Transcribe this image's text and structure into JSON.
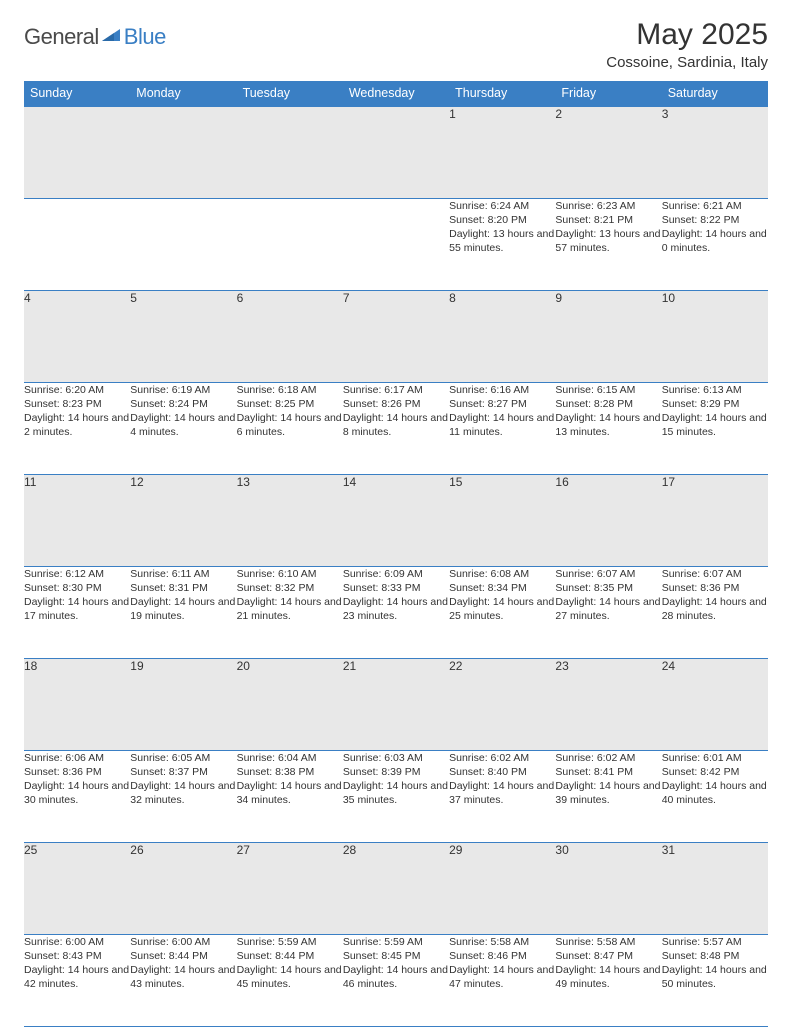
{
  "logo": {
    "text1": "General",
    "text2": "Blue"
  },
  "title": "May 2025",
  "location": "Cossoine, Sardinia, Italy",
  "colors": {
    "header_bg": "#3a7fc4",
    "header_text": "#ffffff",
    "daynum_bg": "#e8e8e8",
    "border": "#3a7fc4",
    "text": "#333333"
  },
  "weekdays": [
    "Sunday",
    "Monday",
    "Tuesday",
    "Wednesday",
    "Thursday",
    "Friday",
    "Saturday"
  ],
  "weeks": [
    [
      null,
      null,
      null,
      null,
      {
        "n": "1",
        "sr": "6:24 AM",
        "ss": "8:20 PM",
        "dl": "13 hours and 55 minutes."
      },
      {
        "n": "2",
        "sr": "6:23 AM",
        "ss": "8:21 PM",
        "dl": "13 hours and 57 minutes."
      },
      {
        "n": "3",
        "sr": "6:21 AM",
        "ss": "8:22 PM",
        "dl": "14 hours and 0 minutes."
      }
    ],
    [
      {
        "n": "4",
        "sr": "6:20 AM",
        "ss": "8:23 PM",
        "dl": "14 hours and 2 minutes."
      },
      {
        "n": "5",
        "sr": "6:19 AM",
        "ss": "8:24 PM",
        "dl": "14 hours and 4 minutes."
      },
      {
        "n": "6",
        "sr": "6:18 AM",
        "ss": "8:25 PM",
        "dl": "14 hours and 6 minutes."
      },
      {
        "n": "7",
        "sr": "6:17 AM",
        "ss": "8:26 PM",
        "dl": "14 hours and 8 minutes."
      },
      {
        "n": "8",
        "sr": "6:16 AM",
        "ss": "8:27 PM",
        "dl": "14 hours and 11 minutes."
      },
      {
        "n": "9",
        "sr": "6:15 AM",
        "ss": "8:28 PM",
        "dl": "14 hours and 13 minutes."
      },
      {
        "n": "10",
        "sr": "6:13 AM",
        "ss": "8:29 PM",
        "dl": "14 hours and 15 minutes."
      }
    ],
    [
      {
        "n": "11",
        "sr": "6:12 AM",
        "ss": "8:30 PM",
        "dl": "14 hours and 17 minutes."
      },
      {
        "n": "12",
        "sr": "6:11 AM",
        "ss": "8:31 PM",
        "dl": "14 hours and 19 minutes."
      },
      {
        "n": "13",
        "sr": "6:10 AM",
        "ss": "8:32 PM",
        "dl": "14 hours and 21 minutes."
      },
      {
        "n": "14",
        "sr": "6:09 AM",
        "ss": "8:33 PM",
        "dl": "14 hours and 23 minutes."
      },
      {
        "n": "15",
        "sr": "6:08 AM",
        "ss": "8:34 PM",
        "dl": "14 hours and 25 minutes."
      },
      {
        "n": "16",
        "sr": "6:07 AM",
        "ss": "8:35 PM",
        "dl": "14 hours and 27 minutes."
      },
      {
        "n": "17",
        "sr": "6:07 AM",
        "ss": "8:36 PM",
        "dl": "14 hours and 28 minutes."
      }
    ],
    [
      {
        "n": "18",
        "sr": "6:06 AM",
        "ss": "8:36 PM",
        "dl": "14 hours and 30 minutes."
      },
      {
        "n": "19",
        "sr": "6:05 AM",
        "ss": "8:37 PM",
        "dl": "14 hours and 32 minutes."
      },
      {
        "n": "20",
        "sr": "6:04 AM",
        "ss": "8:38 PM",
        "dl": "14 hours and 34 minutes."
      },
      {
        "n": "21",
        "sr": "6:03 AM",
        "ss": "8:39 PM",
        "dl": "14 hours and 35 minutes."
      },
      {
        "n": "22",
        "sr": "6:02 AM",
        "ss": "8:40 PM",
        "dl": "14 hours and 37 minutes."
      },
      {
        "n": "23",
        "sr": "6:02 AM",
        "ss": "8:41 PM",
        "dl": "14 hours and 39 minutes."
      },
      {
        "n": "24",
        "sr": "6:01 AM",
        "ss": "8:42 PM",
        "dl": "14 hours and 40 minutes."
      }
    ],
    [
      {
        "n": "25",
        "sr": "6:00 AM",
        "ss": "8:43 PM",
        "dl": "14 hours and 42 minutes."
      },
      {
        "n": "26",
        "sr": "6:00 AM",
        "ss": "8:44 PM",
        "dl": "14 hours and 43 minutes."
      },
      {
        "n": "27",
        "sr": "5:59 AM",
        "ss": "8:44 PM",
        "dl": "14 hours and 45 minutes."
      },
      {
        "n": "28",
        "sr": "5:59 AM",
        "ss": "8:45 PM",
        "dl": "14 hours and 46 minutes."
      },
      {
        "n": "29",
        "sr": "5:58 AM",
        "ss": "8:46 PM",
        "dl": "14 hours and 47 minutes."
      },
      {
        "n": "30",
        "sr": "5:58 AM",
        "ss": "8:47 PM",
        "dl": "14 hours and 49 minutes."
      },
      {
        "n": "31",
        "sr": "5:57 AM",
        "ss": "8:48 PM",
        "dl": "14 hours and 50 minutes."
      }
    ]
  ],
  "labels": {
    "sunrise": "Sunrise: ",
    "sunset": "Sunset: ",
    "daylight": "Daylight: "
  }
}
